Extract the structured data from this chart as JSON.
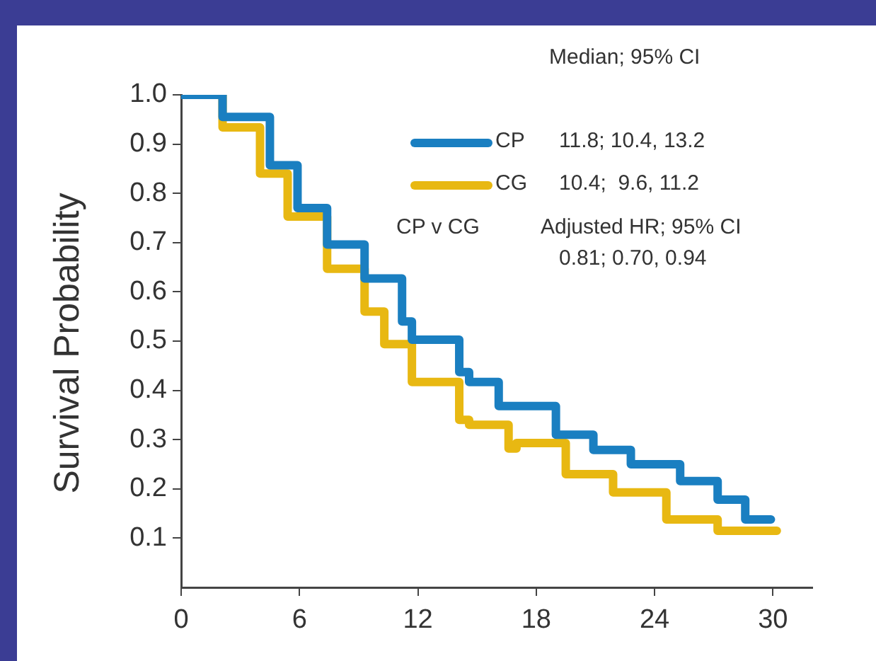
{
  "chart_data": {
    "type": "step",
    "ylabel": "Survival Probability",
    "xlim": [
      0,
      32
    ],
    "xticks": [
      0,
      6,
      12,
      18,
      24,
      30
    ],
    "ylim": [
      0,
      1.0
    ],
    "yticks": [
      0.1,
      0.2,
      0.3,
      0.4,
      0.5,
      0.6,
      0.7,
      0.8,
      0.9,
      {
        "value": 1.0,
        "label": "1.0"
      }
    ],
    "grid": false,
    "legend": "top right",
    "marker": "none",
    "line_style": "solid",
    "annotations": [
      "Median; 95% CI",
      "11.8; 10.4, 13.2",
      "10.4;  9.6, 11.2",
      "CP v CG",
      "Adjusted HR; 95% CI",
      "0.81; 0.70, 0.94"
    ],
    "series": [
      {
        "name": "CP",
        "color": "#1a7fc1",
        "x": [
          0,
          2.1,
          4.5,
          5.9,
          7.4,
          9.3,
          11.2,
          11.7,
          14.1,
          14.6,
          16.1,
          19,
          20.9,
          22.8,
          25.3,
          27.2,
          28.6,
          29.9
        ],
        "values": [
          1.0,
          0.955,
          0.857,
          0.77,
          0.696,
          0.627,
          0.54,
          0.503,
          0.437,
          0.417,
          0.368,
          0.31,
          0.279,
          0.25,
          0.216,
          0.178,
          0.138,
          0.138
        ]
      },
      {
        "name": "CG",
        "color": "#e8b812",
        "x": [
          0,
          2.1,
          4.0,
          5.4,
          7.4,
          9.3,
          10.3,
          11.7,
          14.1,
          14.6,
          16.6,
          17,
          19.5,
          21.9,
          24.6,
          27.2,
          30.2
        ],
        "values": [
          1.0,
          0.934,
          0.84,
          0.753,
          0.647,
          0.56,
          0.494,
          0.417,
          0.34,
          0.33,
          0.282,
          0.293,
          0.23,
          0.193,
          0.138,
          0.115,
          0.115
        ]
      }
    ]
  }
}
